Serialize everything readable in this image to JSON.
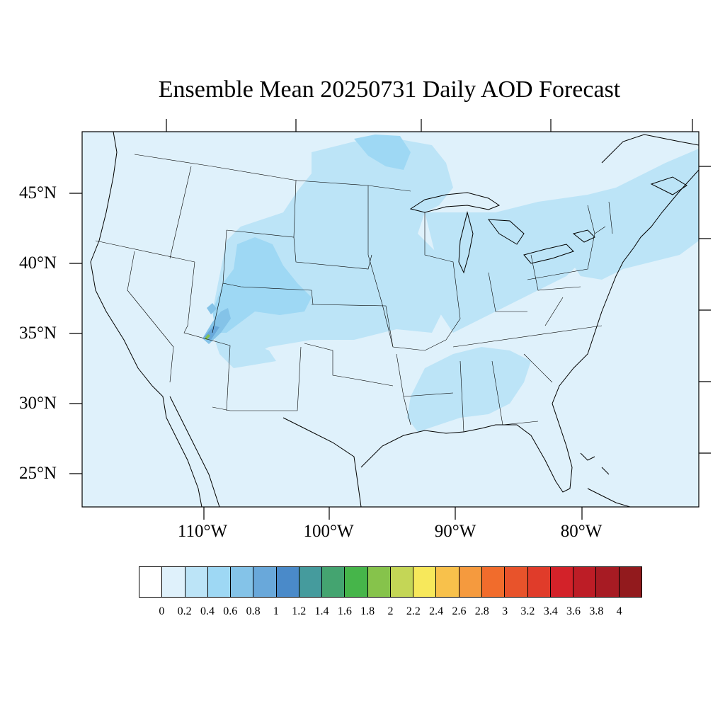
{
  "title": "Ensemble Mean 20250731 Daily AOD Forecast",
  "map": {
    "projection": "Lambert Conformal",
    "region": "Contiguous United States",
    "background_color": "#dff1fb",
    "features": [
      "coastlines",
      "state-boundaries",
      "international-boundaries",
      "great-lakes"
    ],
    "lat_labels": [
      "45°N",
      "40°N",
      "35°N",
      "30°N",
      "25°N"
    ],
    "lon_labels": [
      "110°W",
      "100°W",
      "90°W",
      "80°W"
    ],
    "field_regions": [
      {
        "name": "northern-plains-plume",
        "level": "0.2-0.4"
      },
      {
        "name": "canada-border-plume",
        "level": "0.4-0.6"
      },
      {
        "name": "colorado-wyoming-plume",
        "level": "0.4-0.6"
      },
      {
        "name": "utah-arizona-hotspot",
        "level": "1.6-1.8"
      },
      {
        "name": "southeast-band",
        "level": "0.2-0.4"
      },
      {
        "name": "northeast-band",
        "level": "0.2-0.4"
      }
    ]
  },
  "colorbar": {
    "colors": [
      "#ffffff",
      "#dff1fb",
      "#bce4f7",
      "#9ed8f4",
      "#84c3e8",
      "#69a8da",
      "#4a8ac9",
      "#459b9d",
      "#44a470",
      "#46b54a",
      "#86c34b",
      "#c4d656",
      "#f7e85b",
      "#f8c14b",
      "#f59a3e",
      "#f16c2c",
      "#e8532b",
      "#e03c2a",
      "#d32229",
      "#bd1d26",
      "#a71b23",
      "#921a1d"
    ],
    "labels": [
      "0",
      "0.2",
      "0.4",
      "0.6",
      "0.8",
      "1",
      "1.2",
      "1.4",
      "1.6",
      "1.8",
      "2",
      "2.2",
      "2.4",
      "2.6",
      "2.8",
      "3",
      "3.2",
      "3.4",
      "3.6",
      "3.8",
      "4"
    ]
  }
}
